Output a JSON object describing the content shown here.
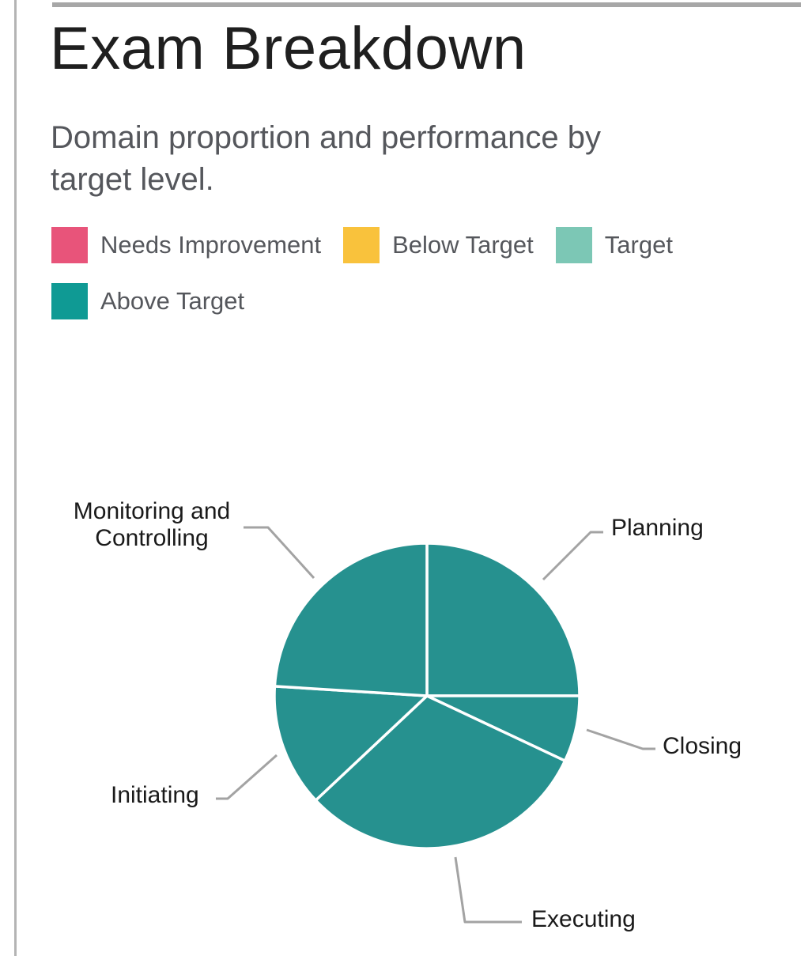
{
  "page": {
    "title": "Exam Breakdown",
    "subtitle": "Domain proportion and performance by\ntarget level."
  },
  "legend": {
    "items": [
      {
        "label": "Needs Improvement",
        "color": "#E8547A"
      },
      {
        "label": "Below Target",
        "color": "#F9C23C"
      },
      {
        "label": "Target",
        "color": "#7CC7B5"
      },
      {
        "label": "Above Target",
        "color": "#0F9A94"
      }
    ]
  },
  "chart_data": {
    "type": "pie",
    "title": "Exam Breakdown",
    "units": "percent",
    "start_angle_deg": 0,
    "direction": "clockwise",
    "slice_color": "#26918F",
    "divider_color": "#ffffff",
    "leader_line_color": "#a3a3a3",
    "slices": [
      {
        "label": "Planning",
        "value": 25,
        "level": "Above Target"
      },
      {
        "label": "Closing",
        "value": 7,
        "level": "Above Target"
      },
      {
        "label": "Executing",
        "value": 31,
        "level": "Above Target"
      },
      {
        "label": "Initiating",
        "value": 13,
        "level": "Above Target"
      },
      {
        "label": "Monitoring and Controlling",
        "value": 24,
        "level": "Above Target"
      }
    ]
  }
}
